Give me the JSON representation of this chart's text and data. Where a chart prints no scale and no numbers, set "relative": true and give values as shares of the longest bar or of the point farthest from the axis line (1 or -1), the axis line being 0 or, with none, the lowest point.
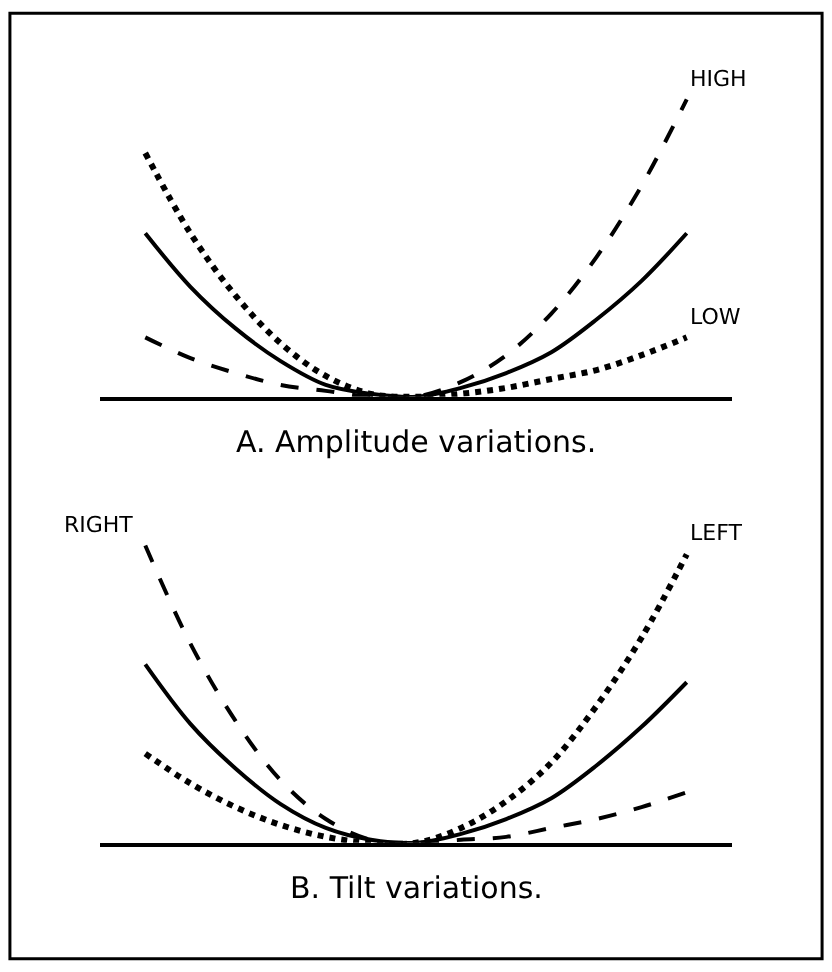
{
  "chart_data": [
    {
      "type": "line",
      "title": "A. Amplitude variations.",
      "relative": true,
      "categories": [
        null,
        null,
        null,
        null,
        null,
        null,
        null,
        null,
        null,
        null,
        null,
        null,
        null
      ],
      "series": [
        {
          "color": "#000000",
          "line_style": "solid",
          "values": [
            0.55,
            0.37,
            0.23,
            0.12,
            0.04,
            0.01,
            0,
            0.03,
            0.08,
            0.15,
            0.26,
            0.39,
            0.55
          ]
        },
        {
          "name": "LOW",
          "color": "#000000",
          "line_style": "dotted",
          "values": [
            0.82,
            0.55,
            0.34,
            0.18,
            0.07,
            0.01,
            0,
            0.01,
            0.03,
            0.06,
            0.09,
            0.14,
            0.2
          ]
        },
        {
          "name": "HIGH",
          "color": "#000000",
          "line_style": "dashed",
          "values": [
            0.2,
            0.13,
            0.08,
            0.04,
            0.02,
            0,
            0,
            0.05,
            0.14,
            0.28,
            0.47,
            0.71,
            1
          ]
        }
      ]
    },
    {
      "type": "line",
      "title": "B. Tilt variations.",
      "relative": true,
      "categories": [
        null,
        null,
        null,
        null,
        null,
        null,
        null,
        null,
        null,
        null,
        null,
        null,
        null
      ],
      "series": [
        {
          "color": "#000000",
          "line_style": "solid",
          "values": [
            0.6,
            0.4,
            0.25,
            0.13,
            0.05,
            0.01,
            0,
            0.03,
            0.08,
            0.15,
            0.26,
            0.39,
            0.54
          ]
        },
        {
          "name": "RIGHT",
          "color": "#000000",
          "line_style": "dashed",
          "values": [
            1,
            0.67,
            0.41,
            0.21,
            0.08,
            0.01,
            0,
            0.01,
            0.02,
            0.05,
            0.08,
            0.12,
            0.17
          ]
        },
        {
          "name": "LEFT",
          "color": "#000000",
          "line_style": "dotted",
          "values": [
            0.3,
            0.2,
            0.12,
            0.06,
            0.02,
            0,
            0,
            0.05,
            0.14,
            0.27,
            0.46,
            0.69,
            0.97
          ]
        }
      ]
    }
  ]
}
